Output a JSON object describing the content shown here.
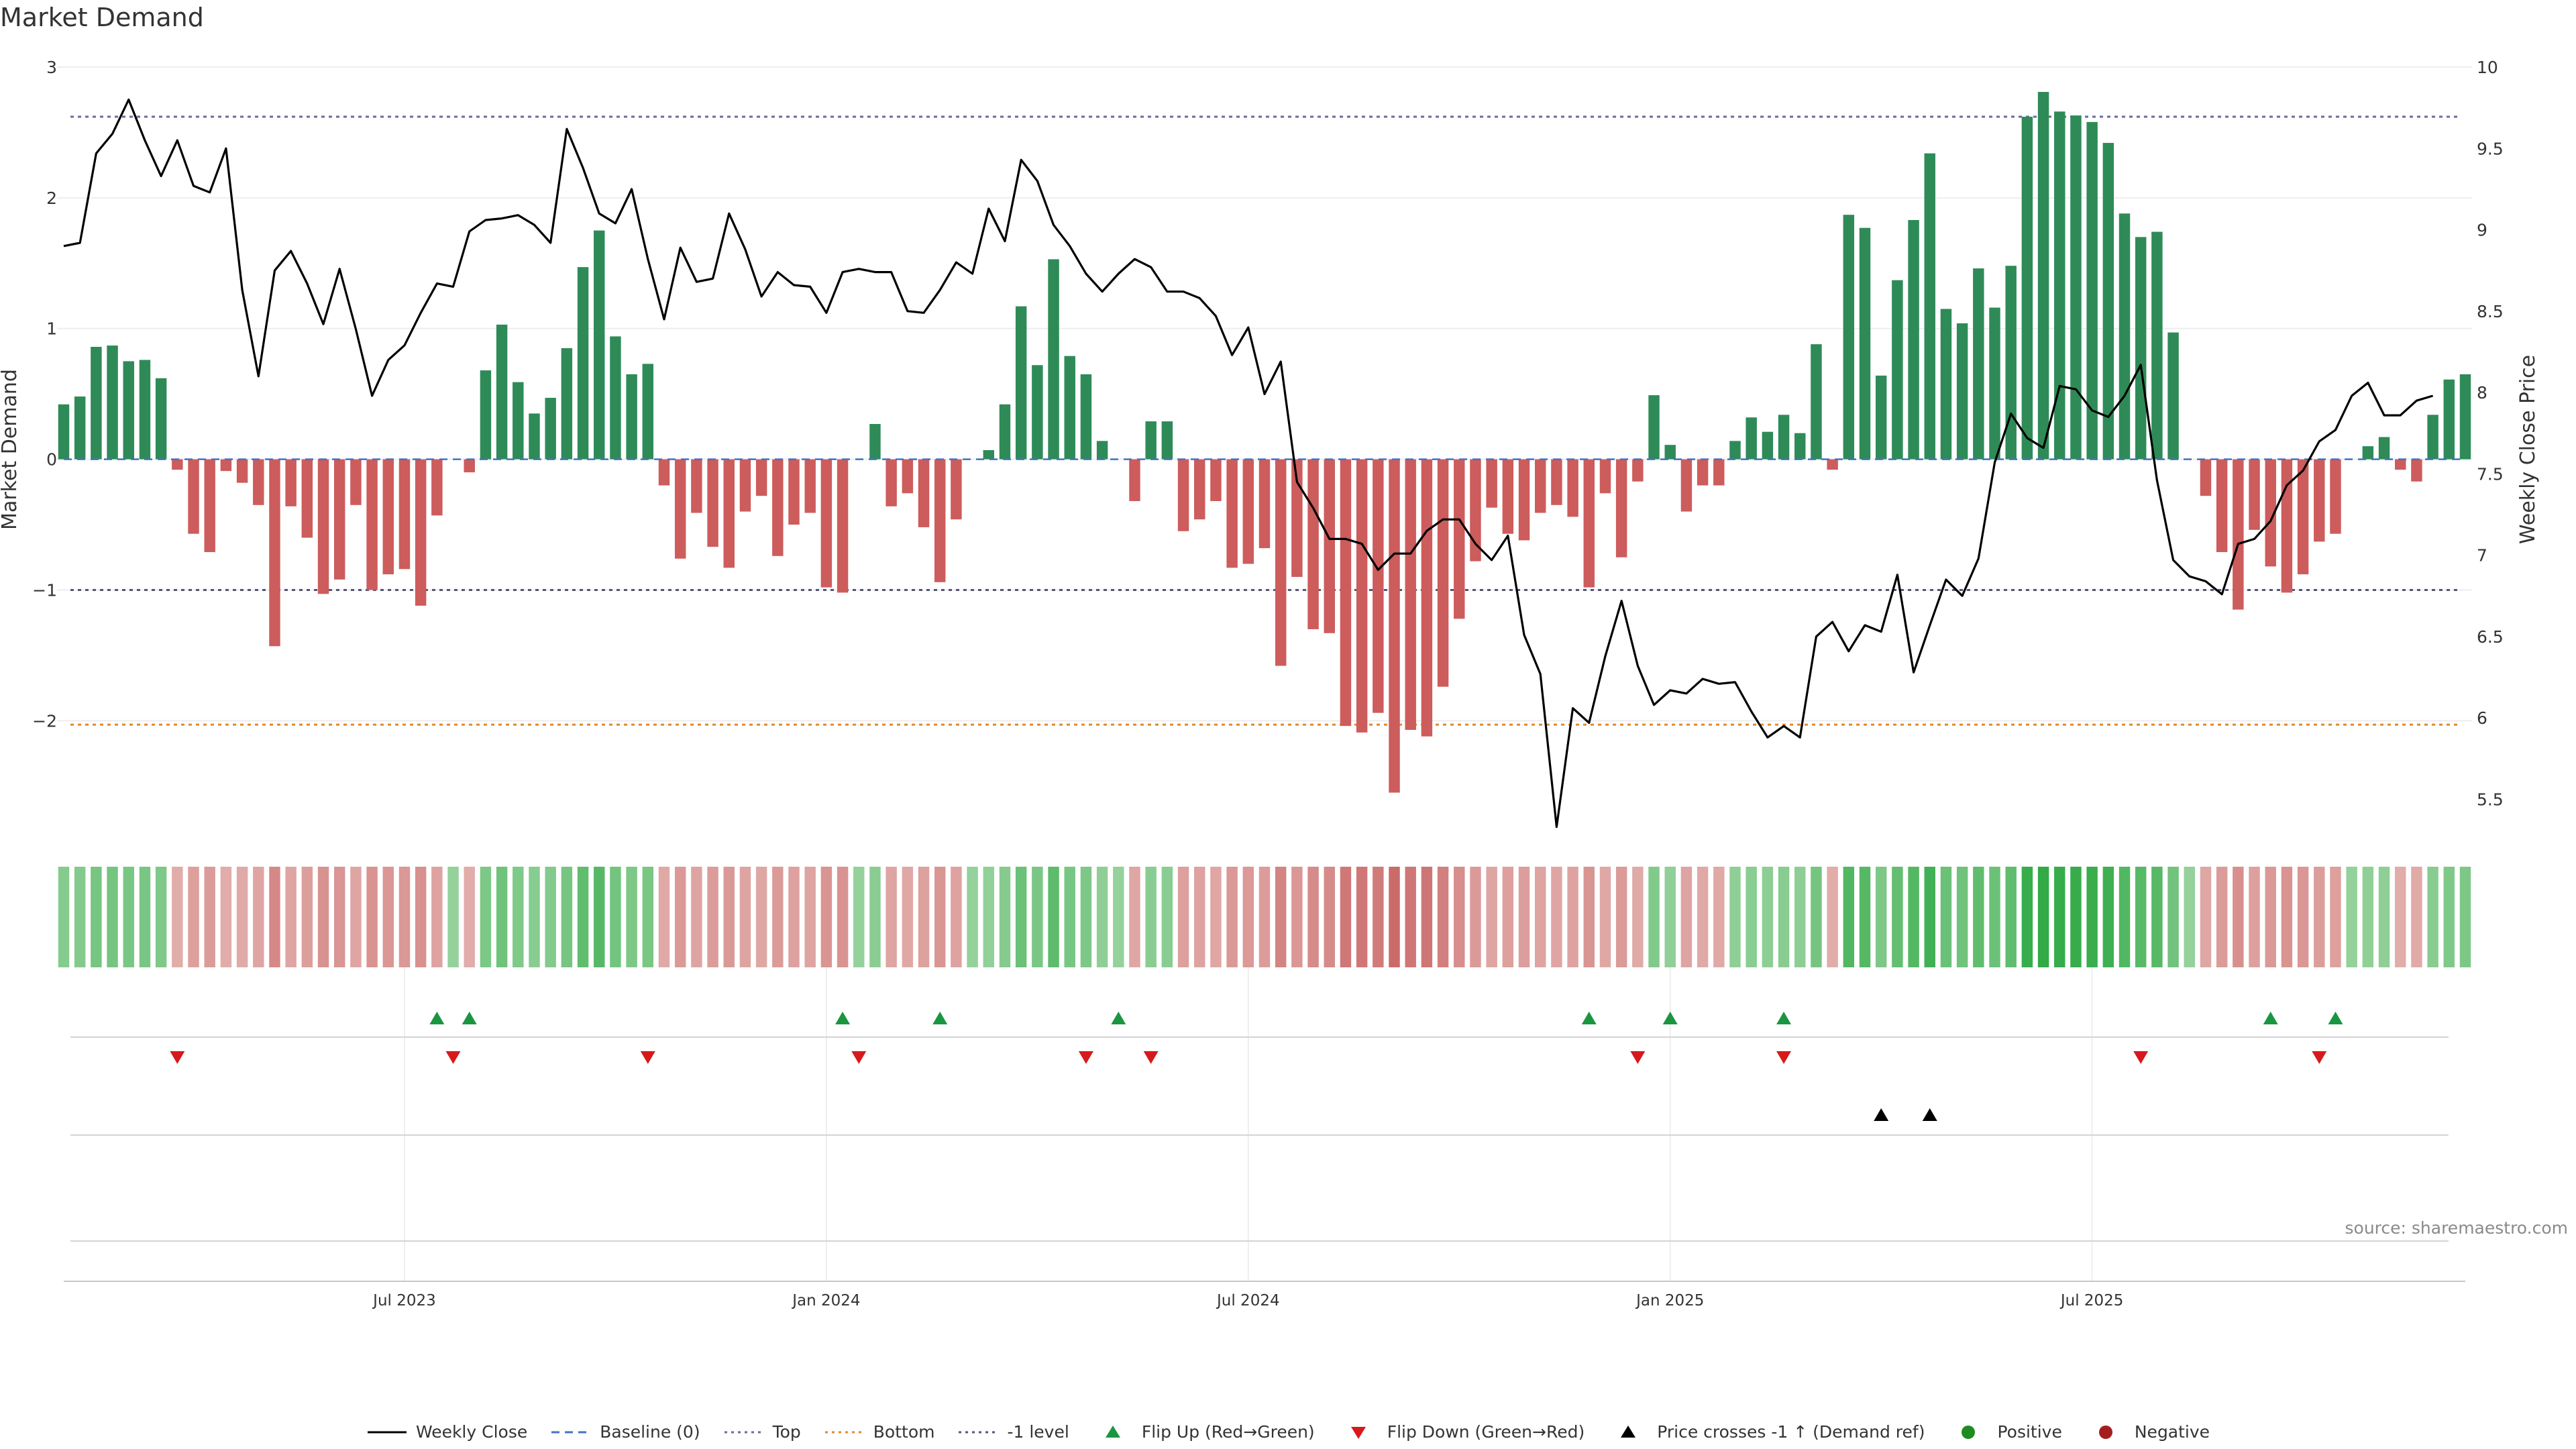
{
  "chart_data": {
    "type": "bar",
    "title": "Market Demand",
    "source": "source: sharemaestro.com",
    "ylabel": "Market Demand",
    "y2label": "Weekly Close Price",
    "ylim": [
      -2.85,
      3.0
    ],
    "y2lim": [
      5.3,
      10.0
    ],
    "yticks": [
      "3",
      "2",
      "1",
      "0",
      "−1",
      "−2"
    ],
    "y2ticks": [
      "10",
      "9.5",
      "9",
      "8.5",
      "8",
      "7.5",
      "7",
      "6.5",
      "6",
      "5.5"
    ],
    "xticks": [
      "Jul 2023",
      "Jan 2024",
      "Jul 2024",
      "Jan 2025",
      "Jul 2025"
    ],
    "x_start": "2023-02-06",
    "x_end": "2025-10-13",
    "levels": {
      "top": 2.62,
      "minus_one": -1.0,
      "bottom": -2.03
    },
    "colors": {
      "positive": "#2e8b57",
      "negative": "#cd5c5c",
      "line": "#000000",
      "flip_up": "#1a9641",
      "flip_down": "#d7191c"
    },
    "demand": [
      0.42,
      0.48,
      0.86,
      0.87,
      0.75,
      0.76,
      0.62,
      -0.08,
      -0.57,
      -0.71,
      -0.09,
      -0.18,
      -0.35,
      -1.43,
      -0.36,
      -0.6,
      -1.03,
      -0.92,
      -0.35,
      -1.0,
      -0.88,
      -0.84,
      -1.12,
      -0.43,
      0,
      -0.1,
      0.68,
      1.03,
      0.59,
      0.35,
      0.47,
      0.85,
      1.47,
      1.75,
      0.94,
      0.65,
      0.73,
      -0.2,
      -0.76,
      -0.41,
      -0.67,
      -0.83,
      -0.4,
      -0.28,
      -0.74,
      -0.5,
      -0.41,
      -0.98,
      -1.02,
      0,
      0.27,
      -0.36,
      -0.26,
      -0.52,
      -0.94,
      -0.46,
      0,
      0.07,
      0.42,
      1.17,
      0.72,
      1.53,
      0.79,
      0.65,
      0.14,
      0,
      -0.32,
      0.29,
      0.29,
      -0.55,
      -0.46,
      -0.32,
      -0.83,
      -0.8,
      -0.68,
      -1.58,
      -0.9,
      -1.3,
      -1.33,
      -2.04,
      -2.09,
      -1.94,
      -2.55,
      -2.07,
      -2.12,
      -1.74,
      -1.22,
      -0.78,
      -0.37,
      -0.57,
      -0.62,
      -0.41,
      -0.35,
      -0.44,
      -0.98,
      -0.26,
      -0.75,
      -0.17,
      0.49,
      0.11,
      -0.4,
      -0.2,
      -0.2,
      0.14,
      0.32,
      0.21,
      0.34,
      0.2,
      0.88,
      -0.08,
      1.87,
      1.77,
      0.64,
      1.37,
      1.83,
      2.34,
      1.15,
      1.04,
      1.46,
      1.16,
      1.48,
      2.62,
      2.81,
      2.66,
      2.63,
      2.58,
      2.42,
      1.88,
      1.7,
      1.74,
      0.97,
      0,
      -0.28,
      -0.71,
      -1.15,
      -0.54,
      -0.82,
      -1.02,
      -0.88,
      -0.63,
      -0.57,
      0,
      0.1,
      0.17,
      -0.08,
      -0.17,
      0.34,
      0.61,
      0.65
    ],
    "price": [
      8.9,
      8.92,
      9.47,
      9.59,
      9.8,
      9.55,
      9.33,
      9.55,
      9.27,
      9.23,
      9.5,
      8.63,
      8.1,
      8.75,
      8.87,
      8.67,
      8.42,
      8.76,
      8.39,
      7.98,
      8.2,
      8.29,
      8.49,
      8.67,
      8.65,
      8.99,
      9.06,
      9.07,
      9.09,
      9.03,
      8.92,
      9.62,
      9.38,
      9.1,
      9.04,
      9.25,
      8.82,
      8.45,
      8.89,
      8.68,
      8.7,
      9.1,
      8.88,
      8.59,
      8.74,
      8.66,
      8.65,
      8.49,
      8.74,
      8.76,
      8.74,
      8.74,
      8.5,
      8.49,
      8.63,
      8.8,
      8.73,
      9.13,
      8.93,
      9.43,
      9.3,
      9.03,
      8.9,
      8.73,
      8.62,
      8.73,
      8.82,
      8.77,
      8.62,
      8.62,
      8.58,
      8.47,
      8.23,
      8.4,
      7.99,
      8.19,
      7.45,
      7.29,
      7.1,
      7.1,
      7.07,
      6.91,
      7.01,
      7.01,
      7.15,
      7.22,
      7.22,
      7.07,
      6.97,
      7.12,
      6.51,
      6.27,
      5.33,
      6.06,
      5.97,
      6.38,
      6.72,
      6.32,
      6.08,
      6.17,
      6.15,
      6.24,
      6.21,
      6.22,
      6.04,
      5.88,
      5.95,
      5.88,
      6.5,
      6.59,
      6.41,
      6.57,
      6.53,
      6.88,
      6.28,
      6.57,
      6.85,
      6.75,
      6.98,
      7.57,
      7.87,
      7.72,
      7.66,
      8.04,
      8.02,
      7.89,
      7.85,
      7.98,
      8.17,
      7.46,
      6.97,
      6.87,
      6.84,
      6.76,
      7.07,
      7.1,
      7.21,
      7.43,
      7.52,
      7.7,
      7.77,
      7.98,
      8.06,
      7.86,
      7.86,
      7.95,
      7.98
    ],
    "flip_up_weeks": [
      23,
      25,
      48,
      54,
      65,
      94,
      99,
      106,
      136,
      140
    ],
    "flip_down_weeks": [
      7,
      24,
      36,
      49,
      63,
      67,
      97,
      106,
      128,
      139
    ],
    "price_cross_weeks": [
      112,
      115
    ],
    "x_ticks_weeks": [
      21,
      47,
      73,
      99,
      125
    ],
    "legend": [
      {
        "label": "Weekly Close",
        "style": "line-solid",
        "color": "#000000"
      },
      {
        "label": "Baseline (0)",
        "style": "line-dashed",
        "color": "#4472c4"
      },
      {
        "label": "Top",
        "style": "line-dotted",
        "color": "#6a6a9a"
      },
      {
        "label": "Bottom",
        "style": "line-dotted",
        "color": "#e08a2c"
      },
      {
        "label": "-1 level",
        "style": "line-dotted",
        "color": "#555577"
      },
      {
        "label": "Flip Up (Red→Green)",
        "style": "triangle-up",
        "color": "#1a9641"
      },
      {
        "label": "Flip Down (Green→Red)",
        "style": "triangle-down",
        "color": "#d7191c"
      },
      {
        "label": "Price crosses -1 ↑ (Demand ref)",
        "style": "triangle-up",
        "color": "#000000"
      },
      {
        "label": "Positive",
        "style": "dot",
        "color": "#1e8c1e"
      },
      {
        "label": "Negative",
        "style": "dot",
        "color": "#a51e1e"
      }
    ]
  }
}
